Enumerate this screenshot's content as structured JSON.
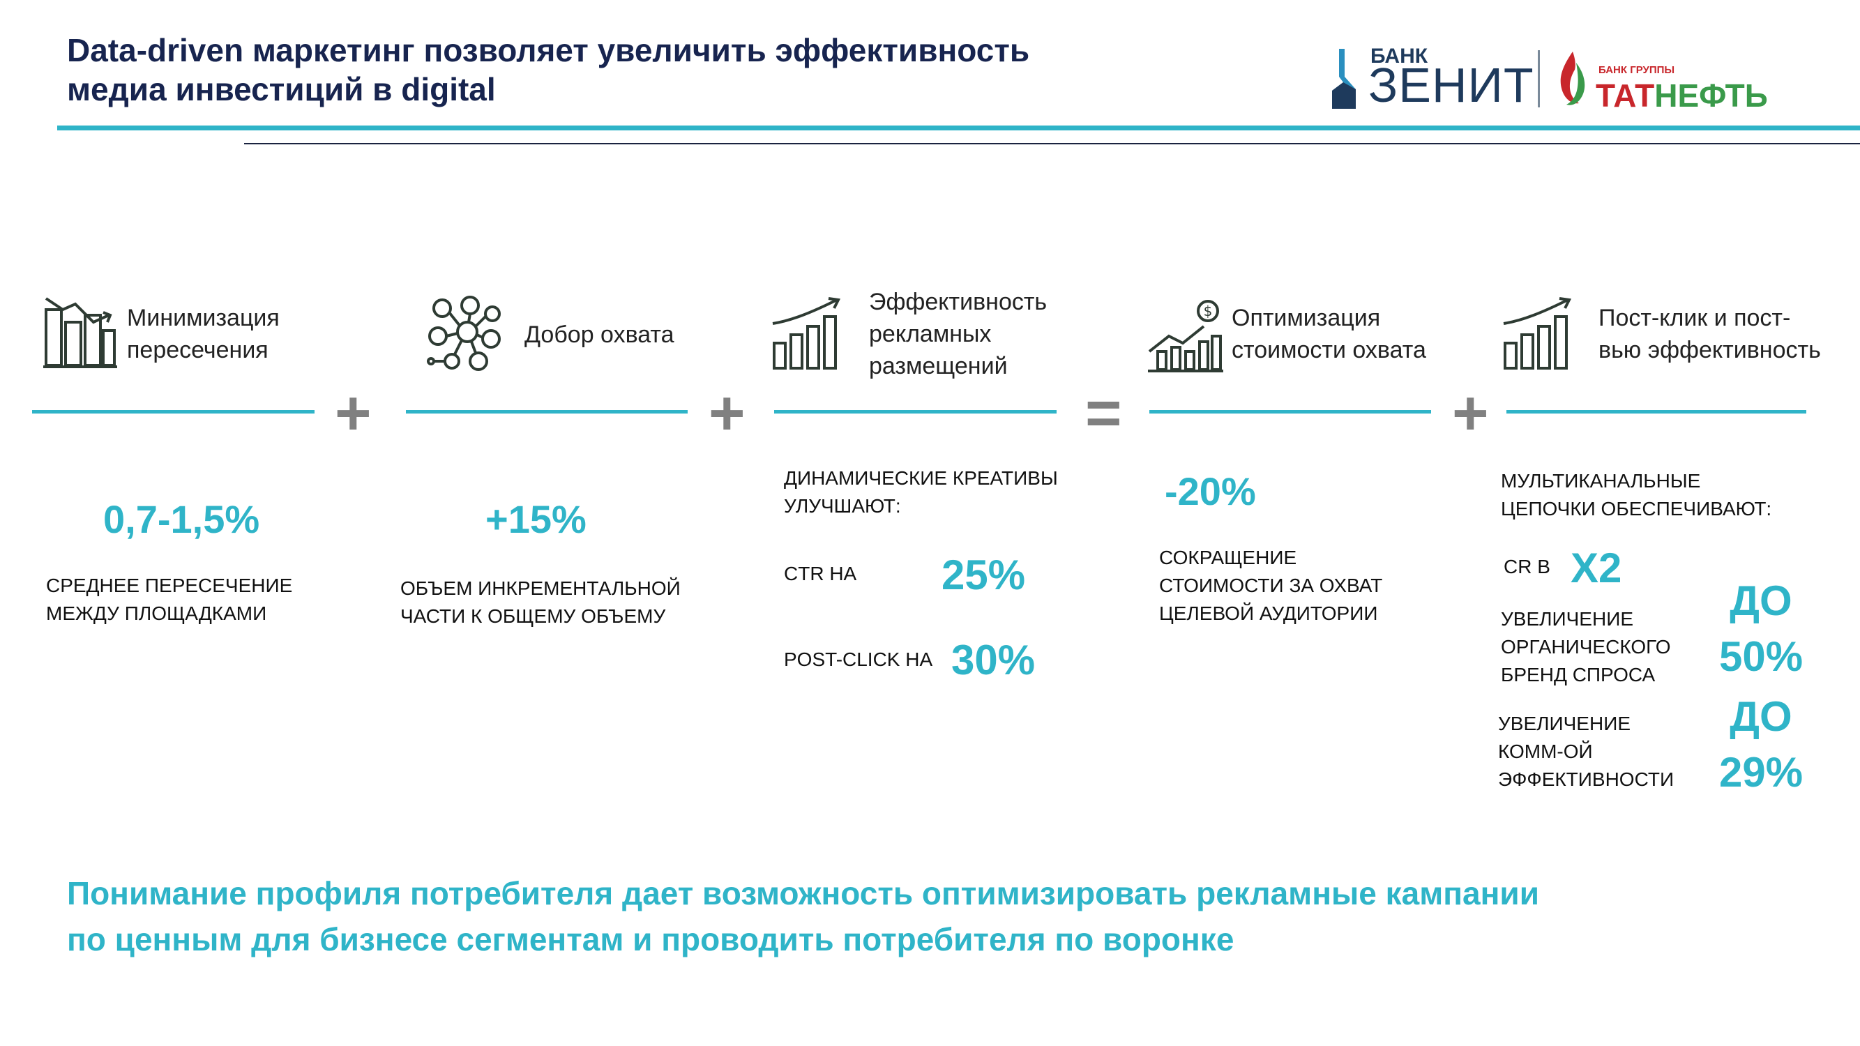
{
  "header": {
    "title_line1": "Data-driven маркетинг позволяет увеличить эффективность",
    "title_line2": "медиа инвестиций в digital"
  },
  "logos": {
    "zenit_small": "БАНК",
    "zenit_big": "ЗЕНИТ",
    "tatneft_small": "БАНК ГРУППЫ",
    "tatneft_red": "ТАТ",
    "tatneft_green": "НЕФТЬ"
  },
  "colors": {
    "accent": "#2fb4c8",
    "title": "#17244f",
    "operator": "#808080",
    "red": "#c8262b",
    "green": "#3a9a4a"
  },
  "blocks": [
    {
      "icon": "bar-chart-decline-icon",
      "heading_l1": "Минимизация",
      "heading_l2": "пересечения",
      "value": "0,7-1,5%",
      "caption_l1": "СРЕДНЕЕ ПЕРЕСЕЧЕНИЕ",
      "caption_l2": "МЕЖДУ ПЛОЩАДКАМИ"
    },
    {
      "icon": "audience-network-icon",
      "heading_l1": "Добор охвата",
      "value": "+15%",
      "caption_l1": "ОБЪЕМ ИНКРЕМЕНТАЛЬНОЙ",
      "caption_l2": "ЧАСТИ К ОБЩЕМУ ОБЪЕМУ"
    },
    {
      "icon": "growth-chart-icon",
      "heading_l1": "Эффективность",
      "heading_l2": "рекламных",
      "heading_l3": "размещений",
      "caption_l1": "ДИНАМИЧЕСКИЕ КРЕАТИВЫ",
      "caption_l2": "УЛУЧШАЮТ:",
      "row1_label": "CTR НА",
      "row1_value": "25%",
      "row2_label": "POST-CLICK НА",
      "row2_value": "30%"
    },
    {
      "icon": "cost-optimization-icon",
      "heading_l1": "Оптимизация",
      "heading_l2": "стоимости охвата",
      "value": "-20%",
      "caption_l1": "СОКРАЩЕНИЕ",
      "caption_l2": "СТОИМОСТИ ЗА ОХВАТ",
      "caption_l3": "ЦЕЛЕВОЙ АУДИТОРИИ"
    },
    {
      "icon": "growth-chart-icon",
      "heading_l1": "Пост-клик и пост-",
      "heading_l2": "вью эффективность",
      "caption_l1": "МУЛЬТИКАНАЛЬНЫЕ",
      "caption_l2": "ЦЕПОЧКИ ОБЕСПЕЧИВАЮТ:",
      "cr_label": "CR В",
      "cr_value": "X2",
      "row2_l1": "УВЕЛИЧЕНИЕ",
      "row2_l2": "ОРГАНИЧЕСКОГО",
      "row2_l3": "БРЕНД СПРОСА",
      "row2_value_l1": "ДО",
      "row2_value_l2": "50%",
      "row3_l1": "УВЕЛИЧЕНИЕ",
      "row3_l2": "КОММ-ОЙ",
      "row3_l3": "ЭФФЕКТИВНОСТИ",
      "row3_value_l1": "ДО",
      "row3_value_l2": "29%"
    }
  ],
  "operators": [
    "+",
    "+",
    "=",
    "+"
  ],
  "footer": {
    "line1": "Понимание профиля потребителя дает возможность оптимизировать рекламные кампании",
    "line2": "по ценным для бизнесе сегментам и проводить потребителя по воронке"
  }
}
